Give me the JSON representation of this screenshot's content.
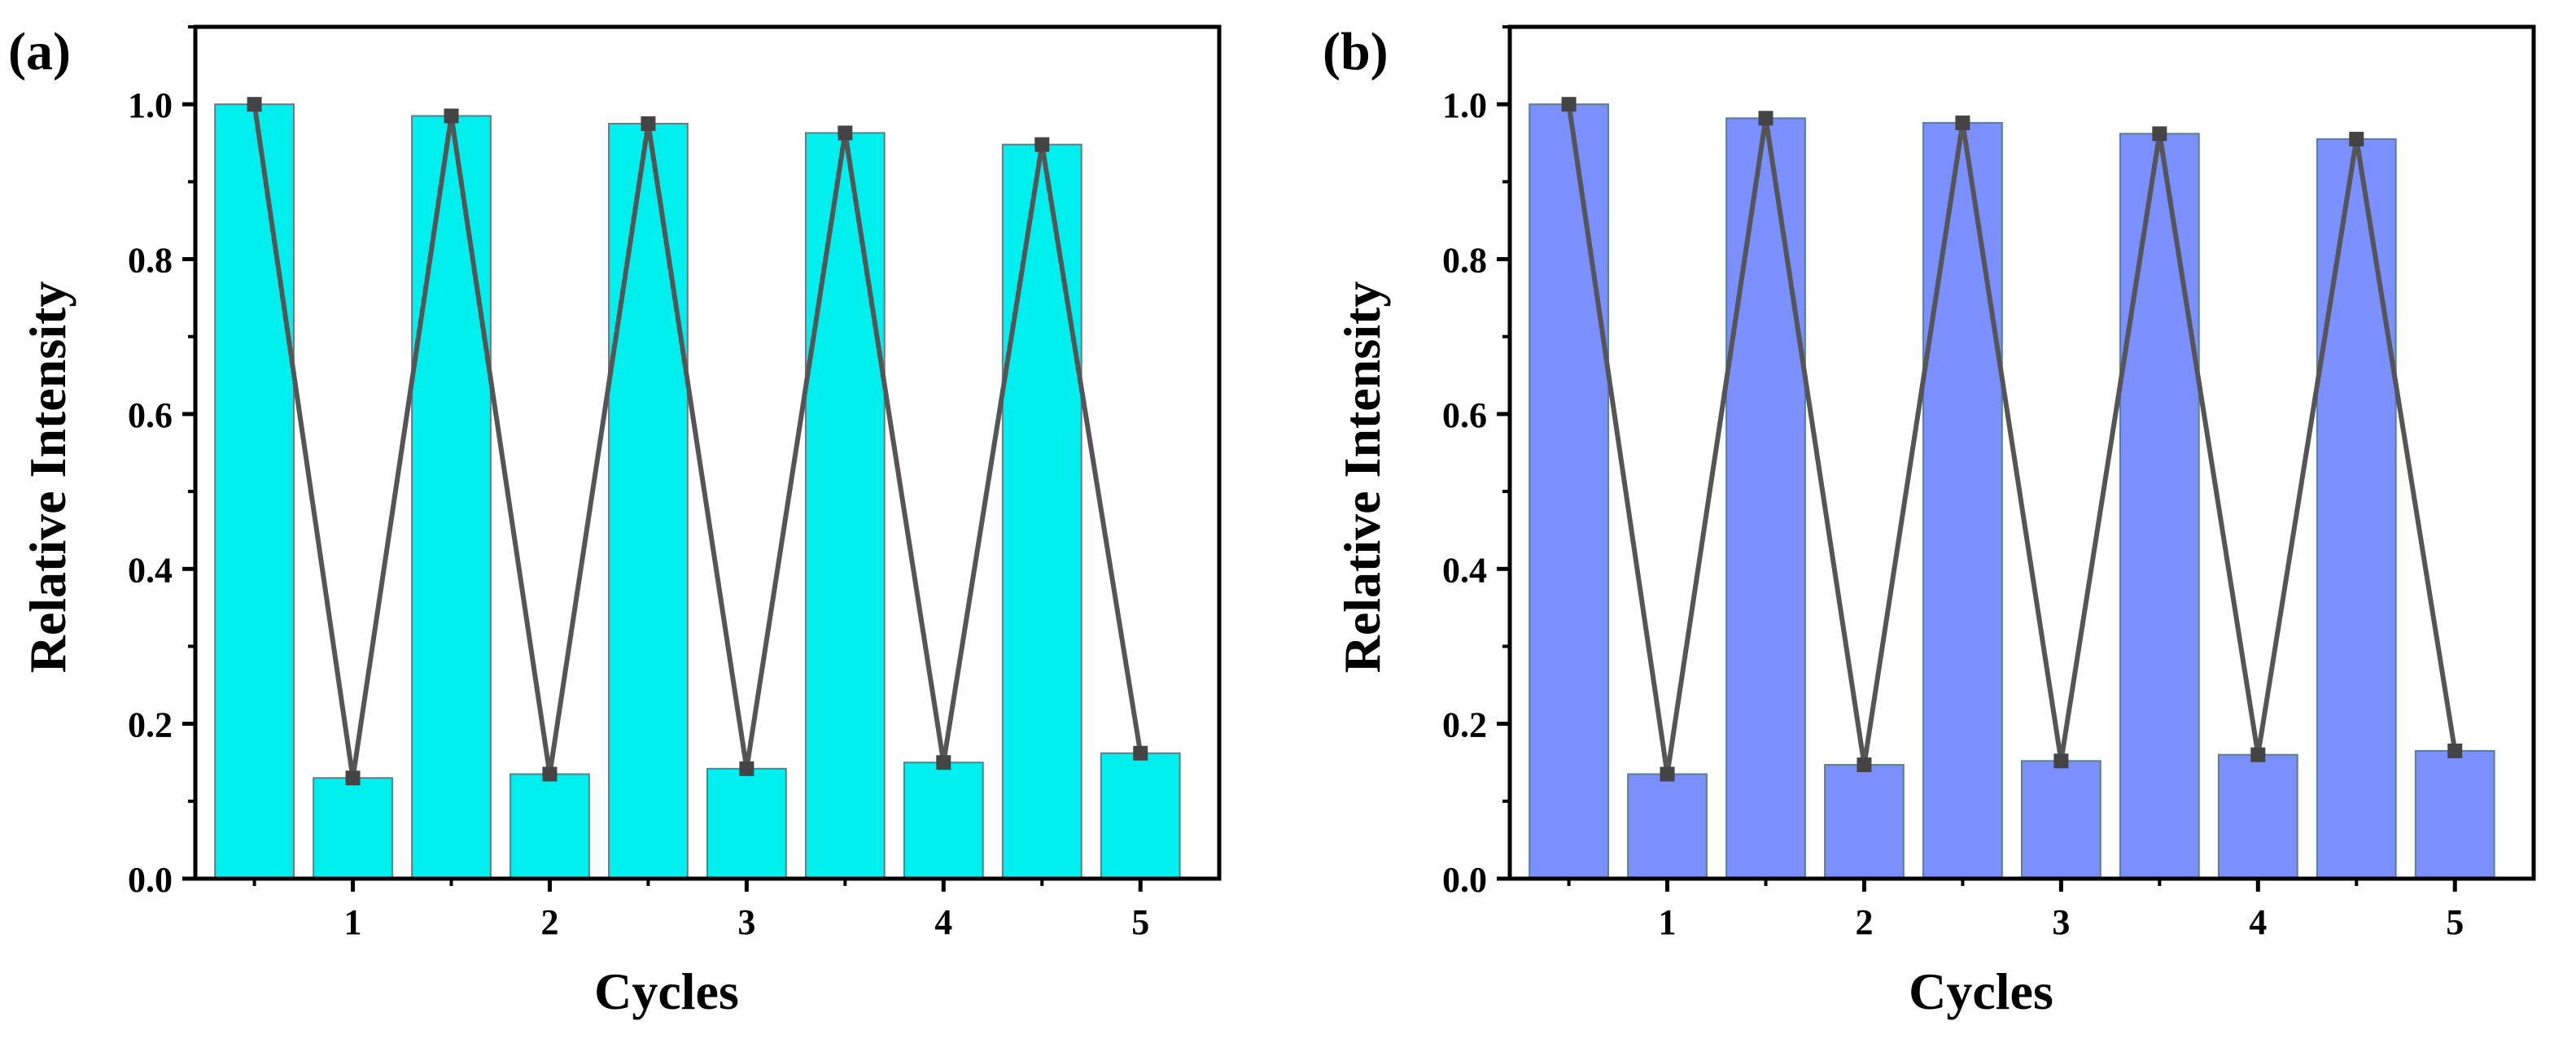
{
  "chart_data": [
    {
      "panel_label": "(a)",
      "type": "bar",
      "title": "",
      "xlabel": "Cycles",
      "ylabel": "Relative Intensity",
      "x_ticks": [
        "1",
        "2",
        "3",
        "4",
        "5"
      ],
      "y_ticks": [
        "0.0",
        "0.2",
        "0.4",
        "0.6",
        "0.8",
        "1.0"
      ],
      "ylim": [
        0,
        1.1
      ],
      "bar_positions": [
        0.5,
        1.0,
        1.5,
        2.0,
        2.5,
        3.0,
        3.5,
        4.0,
        4.5,
        5.0
      ],
      "values": [
        1.0,
        0.13,
        0.985,
        0.135,
        0.975,
        0.142,
        0.963,
        0.15,
        0.948,
        0.162
      ],
      "bar_color": "#00F0F0",
      "line_color": "#555555",
      "legend": "none",
      "grid": false
    },
    {
      "panel_label": "(b)",
      "type": "bar",
      "title": "",
      "xlabel": "Cycles",
      "ylabel": "Relative Intensity",
      "x_ticks": [
        "1",
        "2",
        "3",
        "4",
        "5"
      ],
      "y_ticks": [
        "0.0",
        "0.2",
        "0.4",
        "0.6",
        "0.8",
        "1.0"
      ],
      "ylim": [
        0,
        1.1
      ],
      "bar_positions": [
        0.5,
        1.0,
        1.5,
        2.0,
        2.5,
        3.0,
        3.5,
        4.0,
        4.5,
        5.0
      ],
      "values": [
        1.0,
        0.135,
        0.982,
        0.147,
        0.976,
        0.152,
        0.962,
        0.16,
        0.955,
        0.165
      ],
      "bar_color": "#7B8FFF",
      "line_color": "#555555",
      "legend": "none",
      "grid": false
    }
  ]
}
